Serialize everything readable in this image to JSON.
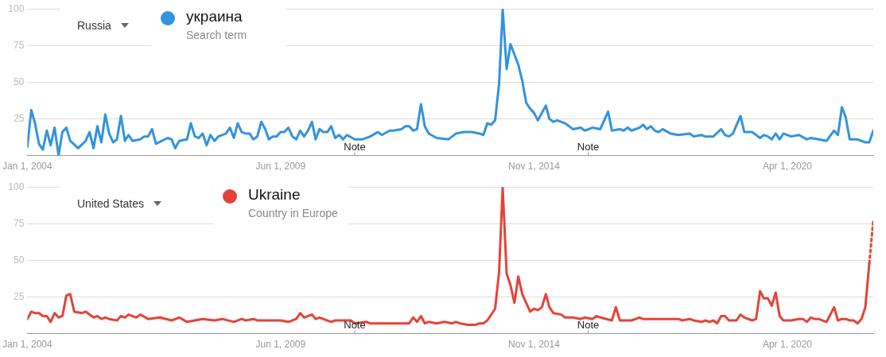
{
  "chart_data": [
    {
      "type": "line",
      "legend": "top left",
      "grid": "y",
      "xlim": [
        "2004-01",
        "2022-02"
      ],
      "ylim": [
        0,
        100
      ],
      "xticks": [
        {
          "value": "2004-01-01",
          "label": "Jan 1, 2004"
        },
        {
          "value": "2009-06-01",
          "label": "Jun 1, 2009"
        },
        {
          "value": "2014-11-01",
          "label": "Nov 1, 2014"
        },
        {
          "value": "2020-04-01",
          "label": "Apr 1, 2020"
        }
      ],
      "yticks": [
        25,
        50,
        75,
        100
      ],
      "annotations": [
        "Russia",
        "Search term",
        "Note",
        "Note"
      ],
      "series": [
        {
          "name": "украина",
          "color": "#3393dd",
          "x": [
            "2004-01",
            "2004-02",
            "2004-03",
            "2004-04",
            "2004-05",
            "2004-06",
            "2004-07",
            "2004-08",
            "2004-09",
            "2004-10",
            "2004-11",
            "2004-12",
            "2005-02",
            "2005-04",
            "2005-05",
            "2005-06",
            "2005-07",
            "2005-08",
            "2005-09",
            "2005-10",
            "2005-11",
            "2005-12",
            "2006-01",
            "2006-02",
            "2006-03",
            "2006-04",
            "2006-06",
            "2006-07",
            "2006-08",
            "2006-09",
            "2006-10",
            "2007-01",
            "2007-02",
            "2007-03",
            "2007-04",
            "2007-06",
            "2007-07",
            "2007-08",
            "2007-09",
            "2007-10",
            "2007-11",
            "2007-12",
            "2008-01",
            "2008-02",
            "2008-03",
            "2008-04",
            "2008-05",
            "2008-06",
            "2008-07",
            "2008-08",
            "2008-09",
            "2008-10",
            "2008-11",
            "2008-12",
            "2009-01",
            "2009-02",
            "2009-03",
            "2009-04",
            "2009-05",
            "2009-06",
            "2009-07",
            "2009-08",
            "2009-09",
            "2009-10",
            "2009-11",
            "2009-12",
            "2010-01",
            "2010-02",
            "2010-03",
            "2010-04",
            "2010-05",
            "2010-06",
            "2010-07",
            "2010-08",
            "2010-09",
            "2010-10",
            "2010-11",
            "2011-01",
            "2011-03",
            "2011-05",
            "2011-07",
            "2011-08",
            "2011-10",
            "2011-11",
            "2012-01",
            "2012-02",
            "2012-03",
            "2012-04",
            "2012-05",
            "2012-06",
            "2012-07",
            "2012-08",
            "2012-10",
            "2013-01",
            "2013-03",
            "2013-05",
            "2013-07",
            "2013-09",
            "2013-10",
            "2013-11",
            "2013-12",
            "2014-01",
            "2014-02",
            "2014-03",
            "2014-04",
            "2014-05",
            "2014-07",
            "2014-08",
            "2014-09",
            "2014-10",
            "2014-11",
            "2014-12",
            "2015-02",
            "2015-03",
            "2015-04",
            "2015-05",
            "2015-07",
            "2015-09",
            "2015-11",
            "2015-12",
            "2016-02",
            "2016-04",
            "2016-06",
            "2016-07",
            "2016-09",
            "2016-10",
            "2016-11",
            "2016-12",
            "2017-02",
            "2017-03",
            "2017-04",
            "2017-05",
            "2017-06",
            "2017-07",
            "2017-08",
            "2017-10",
            "2017-12",
            "2018-03",
            "2018-04",
            "2018-06",
            "2018-07",
            "2018-09",
            "2018-11",
            "2018-12",
            "2019-01",
            "2019-02",
            "2019-04",
            "2019-05",
            "2019-07",
            "2019-09",
            "2019-10",
            "2019-11",
            "2019-12",
            "2020-01",
            "2020-02",
            "2020-03",
            "2020-05",
            "2020-07",
            "2020-09",
            "2020-10",
            "2020-12",
            "2021-02",
            "2021-04",
            "2021-05",
            "2021-06",
            "2021-07",
            "2021-08",
            "2021-10",
            "2021-12",
            "2022-01",
            "2022-02"
          ],
          "values": [
            6,
            31,
            22,
            8,
            4,
            17,
            7,
            19,
            0,
            16,
            19,
            10,
            5,
            10,
            16,
            5,
            20,
            9,
            28,
            15,
            9,
            11,
            27,
            10,
            14,
            10,
            11,
            13,
            13,
            18,
            8,
            12,
            11,
            5,
            10,
            11,
            22,
            13,
            12,
            15,
            7,
            14,
            10,
            13,
            14,
            15,
            19,
            12,
            22,
            16,
            15,
            15,
            11,
            13,
            23,
            18,
            11,
            13,
            13,
            16,
            16,
            19,
            13,
            11,
            17,
            13,
            17,
            23,
            11,
            18,
            16,
            16,
            20,
            12,
            14,
            11,
            14,
            11,
            11,
            13,
            16,
            14,
            17,
            17,
            18,
            20,
            20,
            17,
            18,
            35,
            20,
            15,
            12,
            11,
            15,
            16,
            16,
            15,
            14,
            22,
            21,
            24,
            49,
            100,
            59,
            76,
            62,
            51,
            36,
            32,
            29,
            24,
            34,
            25,
            23,
            24,
            22,
            18,
            19,
            17,
            19,
            18,
            30,
            17,
            18,
            17,
            19,
            17,
            19,
            21,
            18,
            20,
            17,
            16,
            18,
            15,
            14,
            15,
            13,
            14,
            13,
            13,
            18,
            14,
            13,
            15,
            27,
            16,
            16,
            12,
            14,
            13,
            11,
            15,
            11,
            15,
            13,
            14,
            11,
            12,
            11,
            10,
            17,
            14,
            33,
            26,
            11,
            11,
            9,
            9,
            17
          ]
        }
      ]
    },
    {
      "type": "line",
      "legend": "top left",
      "grid": "y",
      "xlim": [
        "2004-01",
        "2022-02"
      ],
      "ylim": [
        0,
        100
      ],
      "xticks": [
        {
          "value": "2004-01-01",
          "label": "Jan 1, 2004"
        },
        {
          "value": "2009-06-01",
          "label": "Jun 1, 2009"
        },
        {
          "value": "2014-11-01",
          "label": "Nov 1, 2014"
        },
        {
          "value": "2020-04-01",
          "label": "Apr 1, 2020"
        }
      ],
      "yticks": [
        25,
        50,
        75,
        100
      ],
      "annotations": [
        "United States",
        "Country in Europe",
        "Note",
        "Note"
      ],
      "series": [
        {
          "name": "Ukraine",
          "color": "#e5433a",
          "x": [
            "2004-01",
            "2004-02",
            "2004-03",
            "2004-04",
            "2004-05",
            "2004-06",
            "2004-07",
            "2004-08",
            "2004-09",
            "2004-10",
            "2004-11",
            "2004-12",
            "2005-01",
            "2005-03",
            "2005-04",
            "2005-06",
            "2005-07",
            "2005-08",
            "2005-09",
            "2005-10",
            "2005-12",
            "2006-01",
            "2006-02",
            "2006-03",
            "2006-05",
            "2006-06",
            "2006-08",
            "2006-11",
            "2007-02",
            "2007-04",
            "2007-06",
            "2007-08",
            "2007-10",
            "2008-01",
            "2008-03",
            "2008-06",
            "2008-08",
            "2008-09",
            "2008-11",
            "2008-12",
            "2009-06",
            "2009-08",
            "2009-10",
            "2009-11",
            "2009-12",
            "2010-02",
            "2010-03",
            "2010-04",
            "2010-07",
            "2010-08",
            "2010-12",
            "2011-01",
            "2011-04",
            "2011-05",
            "2012-03",
            "2012-04",
            "2012-05",
            "2012-06",
            "2012-07",
            "2012-08",
            "2012-10",
            "2012-12",
            "2013-02",
            "2013-03",
            "2013-04",
            "2013-06",
            "2013-08",
            "2013-09",
            "2013-10",
            "2013-11",
            "2014-01",
            "2014-02",
            "2014-03",
            "2014-04",
            "2014-05",
            "2014-06",
            "2014-07",
            "2014-08",
            "2014-10",
            "2014-11",
            "2014-12",
            "2015-01",
            "2015-02",
            "2015-03",
            "2015-04",
            "2015-06",
            "2015-07",
            "2015-09",
            "2015-11",
            "2015-12",
            "2016-02",
            "2016-03",
            "2016-04",
            "2016-07",
            "2016-08",
            "2016-09",
            "2016-12",
            "2017-02",
            "2017-03",
            "2017-12",
            "2018-01",
            "2018-03",
            "2018-04",
            "2018-06",
            "2018-07",
            "2018-08",
            "2018-09",
            "2018-10",
            "2018-11",
            "2018-12",
            "2019-01",
            "2019-03",
            "2019-04",
            "2019-05",
            "2019-07",
            "2019-08",
            "2019-09",
            "2019-10",
            "2019-11",
            "2019-12",
            "2020-01",
            "2020-02",
            "2020-03",
            "2020-05",
            "2020-07",
            "2020-08",
            "2020-09",
            "2020-10",
            "2020-11",
            "2020-12",
            "2021-02",
            "2021-04",
            "2021-05",
            "2021-06",
            "2021-07",
            "2021-08",
            "2021-09",
            "2021-10",
            "2021-11",
            "2021-12",
            "2022-01"
          ],
          "values": [
            10,
            15,
            14,
            14,
            12,
            12,
            8,
            14,
            11,
            12,
            26,
            27,
            15,
            14,
            15,
            11,
            12,
            10,
            11,
            10,
            9,
            12,
            11,
            13,
            11,
            13,
            10,
            11,
            9,
            11,
            8,
            9,
            10,
            9,
            10,
            8,
            10,
            9,
            10,
            9,
            9,
            8,
            10,
            14,
            11,
            13,
            10,
            11,
            8,
            9,
            9,
            7,
            8,
            7,
            7,
            11,
            8,
            12,
            7,
            8,
            7,
            8,
            7,
            8,
            7,
            6,
            6,
            7,
            7,
            9,
            17,
            42,
            100,
            41,
            33,
            21,
            39,
            27,
            15,
            17,
            16,
            18,
            27,
            18,
            14,
            13,
            11,
            11,
            10,
            11,
            10,
            12,
            11,
            9,
            18,
            9,
            9,
            11,
            10,
            10,
            9,
            10,
            9,
            8,
            9,
            8,
            9,
            7,
            12,
            12,
            9,
            9,
            13,
            11,
            9,
            10,
            29,
            24,
            24,
            19,
            28,
            12,
            9,
            9,
            10,
            10,
            8,
            11,
            10,
            10,
            8,
            18,
            9,
            10,
            10,
            9,
            9,
            7,
            10,
            18,
            48
          ]
        },
        {
          "color": "#e5433a",
          "line_style": "dotted",
          "x": [
            "2022-01",
            "2022-02"
          ],
          "values": [
            48,
            77
          ]
        }
      ]
    }
  ]
}
